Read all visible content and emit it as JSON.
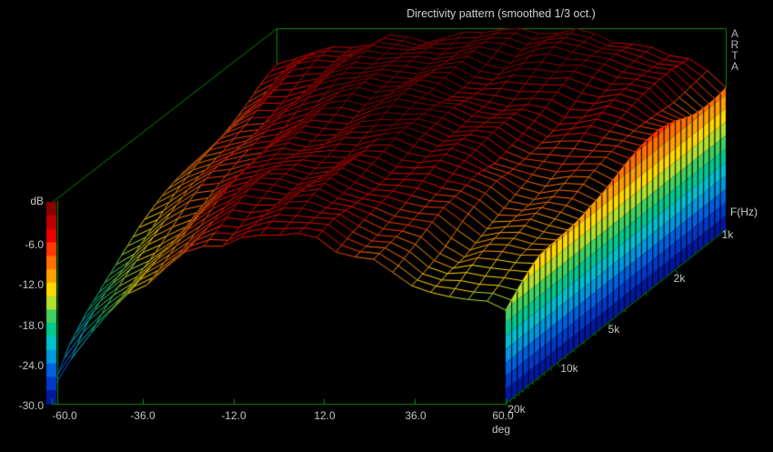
{
  "title": "Directivity pattern (smoothed 1/3 oct.)",
  "watermark": {
    "letters": [
      "A",
      "R",
      "T",
      "A"
    ]
  },
  "axes": {
    "db": {
      "label": "dB",
      "ticks": [
        "-6.0",
        "-12.0",
        "-18.0",
        "-24.0",
        "-30.0"
      ],
      "tick_values": [
        -6,
        -12,
        -18,
        -24,
        -30
      ],
      "min": -30,
      "max": 0
    },
    "deg": {
      "label": "deg",
      "ticks": [
        "-60.0",
        "-36.0",
        "-12.0",
        "12.0",
        "36.0",
        "60.0"
      ],
      "tick_values": [
        -60,
        -36,
        -12,
        12,
        36,
        60
      ],
      "min": -60,
      "max": 60
    },
    "freq": {
      "label": "F(Hz)",
      "ticks": [
        "1k",
        "2k",
        "5k",
        "10k",
        "20k"
      ],
      "tick_values": [
        1000,
        2000,
        5000,
        10000,
        20000
      ],
      "min": 1000,
      "max": 20000,
      "scale": "log"
    }
  },
  "colors": {
    "background": "#000000",
    "box": "#0a870a",
    "text": "#c4c4c4",
    "bands": [
      "#8b0000",
      "#c00000",
      "#ea0000",
      "#ff3800",
      "#ff7000",
      "#ffa000",
      "#ffd800",
      "#b0e030",
      "#40d060",
      "#00c890",
      "#00c0d0",
      "#0098e0",
      "#0060e0",
      "#0038c8",
      "#0018a0"
    ],
    "band_step_db": 2
  },
  "chart_data": {
    "type": "surface",
    "title": "Directivity pattern (smoothed 1/3 oct.)",
    "xlabel": "deg",
    "ylabel": "dB",
    "zlabel": "F(Hz)",
    "x_range": [
      -60,
      60
    ],
    "db_range": [
      -30,
      0
    ],
    "freq_range": [
      1000,
      20000
    ],
    "freq_scale": "log",
    "legend": "color bar maps surface height to dB (0 at top / dark red, -30 at bottom / dark blue)",
    "angles_deg": [
      -60,
      -50,
      -40,
      -30,
      -20,
      -10,
      0,
      10,
      20,
      30,
      40,
      50,
      60
    ],
    "frequencies_hz": [
      1000,
      1250,
      1600,
      2000,
      2500,
      3150,
      4000,
      5000,
      6300,
      8000,
      10000,
      12500,
      16000,
      20000
    ],
    "spl_db": [
      [
        -6.0,
        -4.0,
        -2.5,
        -1.5,
        -1.0,
        -0.5,
        -0.5,
        -0.5,
        -1.0,
        -1.5,
        -2.5,
        -4.5,
        -8.0
      ],
      [
        -6.5,
        -4.0,
        -2.5,
        -1.5,
        -0.5,
        -0.5,
        0.0,
        -0.5,
        -0.5,
        -1.5,
        -2.5,
        -4.5,
        -8.0
      ],
      [
        -7.5,
        -5.0,
        -3.0,
        -2.0,
        -1.0,
        -0.5,
        -0.5,
        -1.0,
        -1.5,
        -2.0,
        -3.0,
        -5.0,
        -8.0
      ],
      [
        -8.5,
        -5.5,
        -3.5,
        -2.0,
        -1.5,
        -1.0,
        -1.0,
        -1.5,
        -2.0,
        -3.0,
        -4.0,
        -5.5,
        -7.5
      ],
      [
        -9.5,
        -6.5,
        -4.0,
        -2.5,
        -1.5,
        -1.0,
        -1.5,
        -2.0,
        -3.0,
        -4.0,
        -5.0,
        -6.0,
        -7.5
      ],
      [
        -10.5,
        -7.5,
        -5.0,
        -3.0,
        -2.0,
        -1.5,
        -1.5,
        -2.0,
        -3.0,
        -4.5,
        -5.5,
        -6.5,
        -8.0
      ],
      [
        -11.5,
        -8.5,
        -6.0,
        -3.5,
        -2.5,
        -2.0,
        -2.0,
        -2.5,
        -3.5,
        -5.0,
        -6.5,
        -7.0,
        -8.5
      ],
      [
        -12.5,
        -9.5,
        -7.0,
        -4.0,
        -3.0,
        -2.0,
        -2.0,
        -2.5,
        -4.0,
        -6.0,
        -7.5,
        -8.0,
        -9.0
      ],
      [
        -13.5,
        -11.0,
        -8.0,
        -5.0,
        -3.0,
        -2.5,
        -2.5,
        -3.0,
        -4.5,
        -6.0,
        -8.5,
        -9.5,
        -9.5
      ],
      [
        -15.0,
        -12.5,
        -9.0,
        -5.5,
        -3.5,
        -3.0,
        -2.5,
        -3.5,
        -5.0,
        -7.0,
        -9.5,
        -10.5,
        -10.5
      ],
      [
        -17.0,
        -14.0,
        -10.0,
        -6.0,
        -4.0,
        -3.5,
        -3.0,
        -4.0,
        -5.5,
        -7.5,
        -10.5,
        -11.5,
        -11.5
      ],
      [
        -19.5,
        -15.5,
        -11.0,
        -7.0,
        -5.0,
        -4.0,
        -3.5,
        -4.5,
        -6.0,
        -8.5,
        -11.5,
        -12.0,
        -12.5
      ],
      [
        -23.0,
        -17.5,
        -12.5,
        -8.0,
        -6.0,
        -4.5,
        -4.5,
        -5.0,
        -7.0,
        -9.5,
        -12.0,
        -13.0,
        -14.5
      ],
      [
        -28.0,
        -20.0,
        -14.0,
        -9.0,
        -6.5,
        -5.0,
        -5.0,
        -6.0,
        -8.0,
        -10.5,
        -13.0,
        -14.0,
        -16.5
      ]
    ]
  }
}
